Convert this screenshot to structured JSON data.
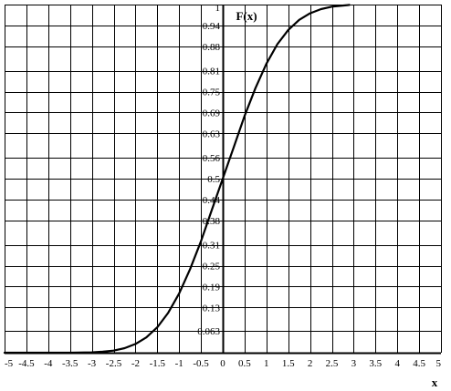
{
  "chart_data": {
    "type": "line",
    "ylabel": "F(x)",
    "xlabel": "x",
    "xlim": [
      -5,
      5
    ],
    "ylim": [
      0,
      1
    ],
    "grid": true,
    "x_ticks": [
      -5,
      -4.5,
      -4,
      -3.5,
      -3,
      -2.5,
      -2,
      -1.5,
      -1,
      -0.5,
      0,
      0.5,
      1,
      1.5,
      2,
      2.5,
      3,
      3.5,
      4,
      4.5,
      5
    ],
    "x_tick_labels": [
      "-5",
      "-4.5",
      "-4",
      "-3.5",
      "-3",
      "-2.5",
      "-2",
      "-1.5",
      "-1",
      "-0.5",
      "0",
      "0.5",
      "1",
      "1.5",
      "2",
      "2.5",
      "3",
      "3.5",
      "4",
      "4.5",
      "5"
    ],
    "y_ticks": [
      0.063,
      0.13,
      0.19,
      0.25,
      0.31,
      0.38,
      0.44,
      0.5,
      0.56,
      0.63,
      0.69,
      0.75,
      0.81,
      0.88,
      0.94,
      1
    ],
    "y_tick_labels": [
      "0.063",
      "0.13",
      "0.19",
      "0.25",
      "0.31",
      "0.38",
      "0.44",
      "0.5",
      "0.56",
      "0.63",
      "0.69",
      "0.75",
      "0.81",
      "0.88",
      "0.94",
      "1"
    ],
    "series": [
      {
        "x": [
          -5,
          -4.5,
          -4,
          -3.5,
          -3,
          -2.75,
          -2.5,
          -2.25,
          -2,
          -1.75,
          -1.5,
          -1.25,
          -1,
          -0.75,
          -0.5,
          -0.25,
          0,
          0.25,
          0.5,
          0.75,
          1,
          1.25,
          1.5,
          1.75,
          2,
          2.25,
          2.5,
          2.75,
          2.9
        ],
        "y": [
          0,
          0,
          0,
          0,
          0.001,
          0.003,
          0.006,
          0.013,
          0.025,
          0.044,
          0.073,
          0.115,
          0.17,
          0.24,
          0.32,
          0.41,
          0.5,
          0.59,
          0.68,
          0.76,
          0.83,
          0.886,
          0.927,
          0.956,
          0.975,
          0.987,
          0.994,
          0.997,
          0.999
        ]
      }
    ]
  }
}
